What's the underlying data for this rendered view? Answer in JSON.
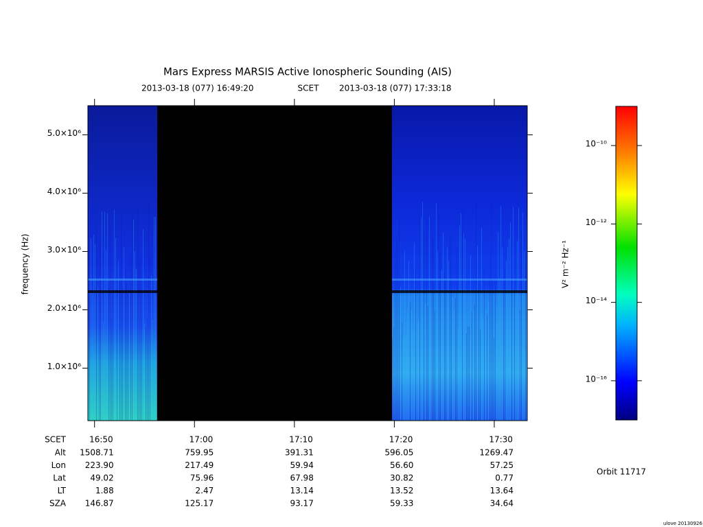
{
  "chart_data": {
    "type": "spectrogram",
    "title": "Mars Express MARSIS Active Ionospheric Sounding (AIS)",
    "start_time": "2013-03-18 (077) 16:49:20",
    "time_system": "SCET",
    "end_time": "2013-03-18 (077) 17:33:18",
    "ylabel": "frequency (Hz)",
    "xlim": [
      1009.333,
      1053.3
    ],
    "xticks": [
      {
        "value": 1010,
        "label": "16:50"
      },
      {
        "value": 1020,
        "label": "17:00"
      },
      {
        "value": 1030,
        "label": "17:10"
      },
      {
        "value": 1040,
        "label": "17:20"
      },
      {
        "value": 1050,
        "label": "17:30"
      }
    ],
    "ylim": [
      100000,
      5500000
    ],
    "yticks": [
      {
        "value": 1000000,
        "label": "1.0×10⁶"
      },
      {
        "value": 2000000,
        "label": "2.0×10⁶"
      },
      {
        "value": 3000000,
        "label": "3.0×10⁶"
      },
      {
        "value": 4000000,
        "label": "4.0×10⁶"
      },
      {
        "value": 5000000,
        "label": "5.0×10⁶"
      }
    ],
    "colorbar": {
      "label": "V² m⁻² Hz⁻¹",
      "log": true,
      "lim": [
        1e-17,
        1e-09
      ],
      "ticks": [
        {
          "value": 1e-10,
          "label": "10⁻¹⁰"
        },
        {
          "value": 1e-12,
          "label": "10⁻¹²"
        },
        {
          "value": 1e-14,
          "label": "10⁻¹⁴"
        },
        {
          "value": 1e-16,
          "label": "10⁻¹⁶"
        }
      ]
    },
    "ephemeris": [
      {
        "name": "Alt",
        "values": [
          "1508.71",
          "759.95",
          "391.31",
          "596.05",
          "1269.47"
        ]
      },
      {
        "name": "Lon",
        "values": [
          "223.90",
          "217.49",
          "59.94",
          "56.60",
          "57.25"
        ]
      },
      {
        "name": "Lat",
        "values": [
          "49.02",
          "75.96",
          "67.98",
          "30.82",
          "0.77"
        ]
      },
      {
        "name": "LT",
        "values": [
          "1.88",
          "2.47",
          "13.14",
          "13.52",
          "13.64"
        ]
      },
      {
        "name": "SZA",
        "values": [
          "146.87",
          "125.17",
          "93.17",
          "59.33",
          "34.64"
        ]
      }
    ],
    "orbit": "Orbit 11717",
    "stamp": "ulove 20130926"
  }
}
